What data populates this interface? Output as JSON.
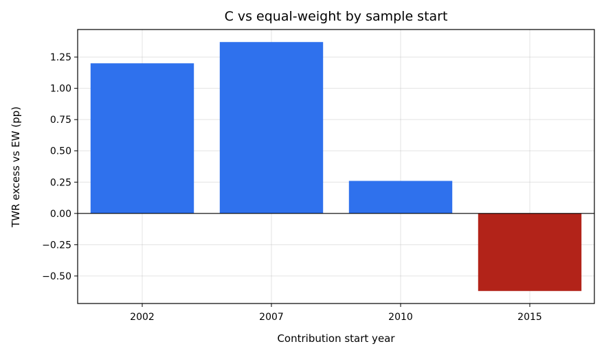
{
  "chart_data": {
    "type": "bar",
    "title": "C vs equal-weight by sample start",
    "xlabel": "Contribution start year",
    "ylabel": "TWR excess vs EW (pp)",
    "categories": [
      "2002",
      "2007",
      "2010",
      "2015"
    ],
    "values": [
      1.2,
      1.37,
      0.26,
      -0.62
    ],
    "ylim": [
      -0.72,
      1.47
    ],
    "yticks": [
      -0.5,
      -0.25,
      0.0,
      0.25,
      0.5,
      0.75,
      1.0,
      1.25
    ],
    "ytick_labels": [
      "−0.50",
      "−0.25",
      "0.00",
      "0.25",
      "0.50",
      "0.75",
      "1.00",
      "1.25"
    ],
    "grid": true,
    "zero_line": true,
    "colors": {
      "positive": "#2f71ed",
      "negative": "#b22319"
    }
  }
}
